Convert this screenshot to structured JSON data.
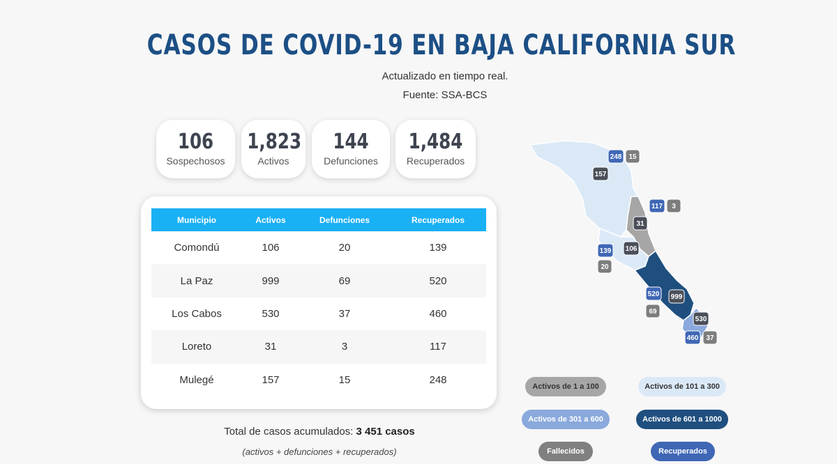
{
  "header": {
    "title": "CASOS DE COVID-19 EN BAJA CALIFORNIA SUR",
    "updated": "Actualizado en tiempo real.",
    "source": "Fuente: SSA-BCS"
  },
  "stats": [
    {
      "value": "106",
      "label": "Sospechosos"
    },
    {
      "value": "1,823",
      "label": "Activos"
    },
    {
      "value": "144",
      "label": "Defunciones"
    },
    {
      "value": "1,484",
      "label": "Recuperados"
    }
  ],
  "table": {
    "headers": [
      "Municipio",
      "Activos",
      "Defunciones",
      "Recuperados"
    ],
    "rows": [
      [
        "Comondú",
        "106",
        "20",
        "139"
      ],
      [
        "La Paz",
        "999",
        "69",
        "520"
      ],
      [
        "Los Cabos",
        "530",
        "37",
        "460"
      ],
      [
        "Loreto",
        "31",
        "3",
        "117"
      ],
      [
        "Mulegé",
        "157",
        "15",
        "248"
      ]
    ]
  },
  "summary": {
    "total_prefix": "Total de casos acumulados: ",
    "total_value": "3 451 casos",
    "note": "(activos + defunciones + recuperados)"
  },
  "map": {
    "badges": [
      {
        "value": "248",
        "kind": "recovered"
      },
      {
        "value": "15",
        "kind": "deaths"
      },
      {
        "value": "157",
        "kind": "active"
      },
      {
        "value": "117",
        "kind": "recovered"
      },
      {
        "value": "3",
        "kind": "deaths"
      },
      {
        "value": "31",
        "kind": "active"
      },
      {
        "value": "139",
        "kind": "recovered"
      },
      {
        "value": "106",
        "kind": "active"
      },
      {
        "value": "20",
        "kind": "deaths"
      },
      {
        "value": "520",
        "kind": "recovered"
      },
      {
        "value": "999",
        "kind": "active"
      },
      {
        "value": "69",
        "kind": "deaths"
      },
      {
        "value": "530",
        "kind": "active"
      },
      {
        "value": "460",
        "kind": "recovered"
      },
      {
        "value": "37",
        "kind": "deaths"
      }
    ]
  },
  "legend": [
    {
      "label": "Activos de 1 a 100",
      "bg": "#a6a6a6",
      "fg": "#333333"
    },
    {
      "label": "Activos de 101 a 300",
      "bg": "#dbe9f7",
      "fg": "#333333"
    },
    {
      "label": "Activos de 301 a 600",
      "bg": "#8aa9dc",
      "fg": "#ffffff"
    },
    {
      "label": "Activos de 601 a 1000",
      "bg": "#1f4f7f",
      "fg": "#ffffff"
    },
    {
      "label": "Fallecidos",
      "bg": "#808080",
      "fg": "#ffffff"
    },
    {
      "label": "Recuperados",
      "bg": "#3f67b5",
      "fg": "#ffffff"
    }
  ],
  "colors": {
    "title": "#1c4f85",
    "table_header": "#1ab0f4",
    "recovered_badge": "#3f67b5",
    "deaths_badge": "#7d7d7d",
    "active_badge": "#4a4f59"
  }
}
